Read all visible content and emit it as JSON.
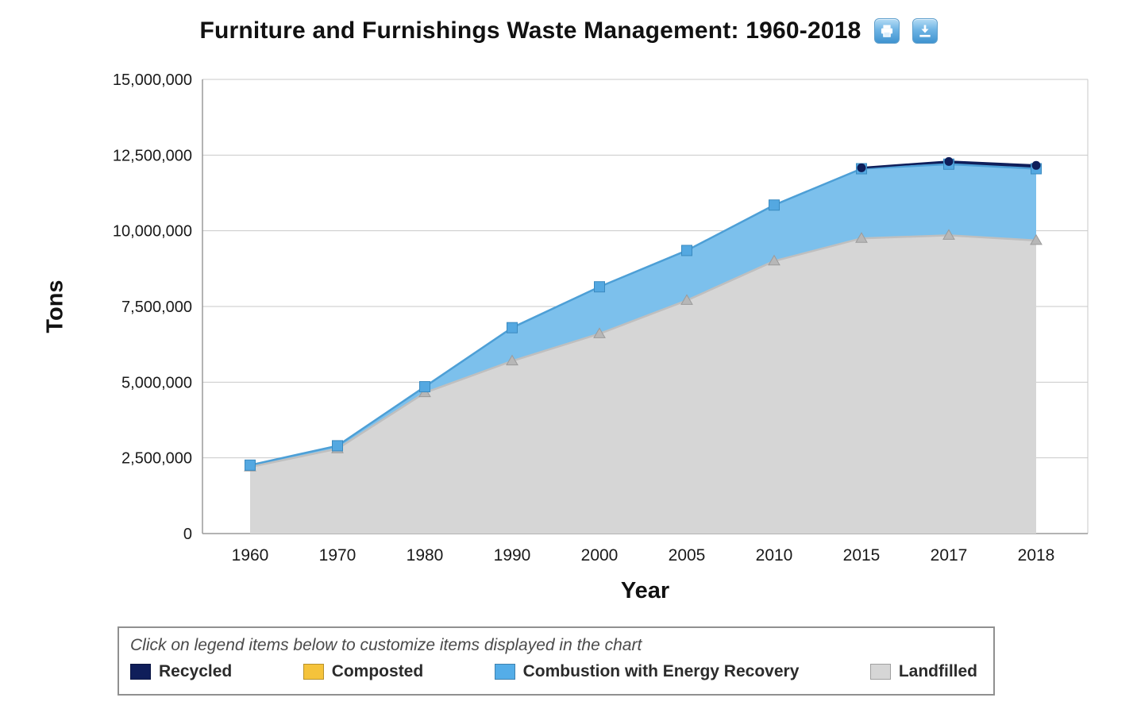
{
  "header": {
    "title": "Furniture and Furnishings Waste Management: 1960-2018",
    "print_icon": "print-icon",
    "download_icon": "download-icon"
  },
  "chart_data": {
    "type": "area",
    "stacked": true,
    "title": "Furniture and Furnishings Waste Management: 1960-2018",
    "xlabel": "Year",
    "ylabel": "Tons",
    "ylim": [
      0,
      15000000
    ],
    "ytick_step": 2500000,
    "ytick_labels": [
      "0",
      "2,500,000",
      "5,000,000",
      "7,500,000",
      "10,000,000",
      "12,500,000",
      "15,000,000"
    ],
    "grid": true,
    "legend_position": "bottom",
    "categories": [
      "1960",
      "1970",
      "1980",
      "1990",
      "2000",
      "2005",
      "2010",
      "2015",
      "2017",
      "2018"
    ],
    "series": [
      {
        "name": "Landfilled",
        "color": "#d6d6d6",
        "stroke": "#bfbfbf",
        "marker": "triangle",
        "marker_color": "#b7b7b7",
        "values": [
          2200000,
          2800000,
          4650000,
          5700000,
          6600000,
          7700000,
          9000000,
          9750000,
          9850000,
          9680000
        ]
      },
      {
        "name": "Combustion with Energy Recovery",
        "color": "#7cc0ec",
        "stroke": "#4d9fd6",
        "marker": "square",
        "marker_color": "#54a8e1",
        "values": [
          60000,
          100000,
          200000,
          1100000,
          1550000,
          1650000,
          1850000,
          2300000,
          2350000,
          2370000
        ]
      },
      {
        "name": "Composted",
        "color": "#f5c33b",
        "stroke": "#d9a520",
        "marker": "none",
        "marker_color": "#f5c33b",
        "values": [
          0,
          0,
          0,
          0,
          0,
          0,
          0,
          0,
          0,
          0
        ]
      },
      {
        "name": "Recycled",
        "color": "#0f1e5a",
        "stroke": "#0f1e5a",
        "marker": "circle",
        "marker_color": "#0f1e5a",
        "values": [
          0,
          0,
          0,
          0,
          0,
          0,
          0,
          30000,
          90000,
          110000
        ]
      }
    ]
  },
  "legend": {
    "hint": "Click on legend items below to customize items displayed in the chart",
    "items": [
      {
        "label": "Recycled",
        "color": "#0f1e5a"
      },
      {
        "label": "Composted",
        "color": "#f5c33b"
      },
      {
        "label": "Combustion with Energy Recovery",
        "color": "#54ade8"
      },
      {
        "label": "Landfilled",
        "color": "#d6d6d6"
      }
    ]
  }
}
